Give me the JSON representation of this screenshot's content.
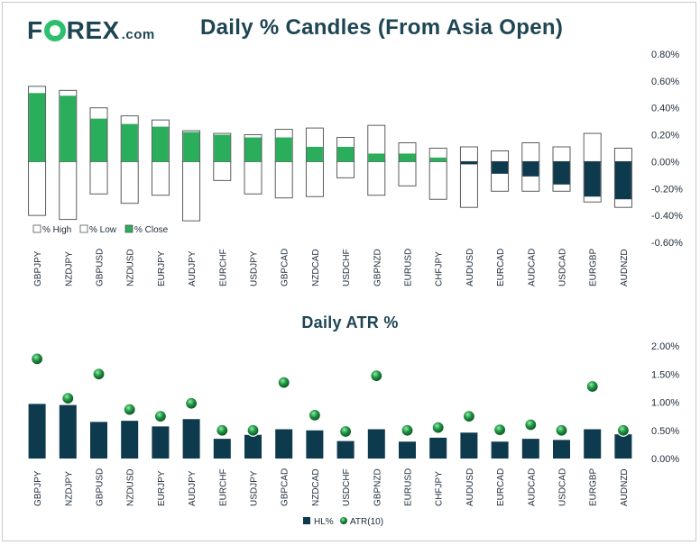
{
  "brand": {
    "name_a": "F",
    "name_b": "REX",
    "suffix": ".com"
  },
  "chart_data": [
    {
      "type": "candlestick",
      "title": "Daily % Candles (From Asia Open)",
      "categories": [
        "GBPJPY",
        "NZDJPY",
        "GBPUSD",
        "NZDUSD",
        "EURJPY",
        "AUDJPY",
        "EURCHF",
        "USDJPY",
        "GBPCAD",
        "NZDCAD",
        "USDCHF",
        "GBPNZD",
        "EURUSD",
        "CHFJPY",
        "AUDUSD",
        "EURCAD",
        "AUDCAD",
        "USDCAD",
        "EURGBP",
        "AUDNZD"
      ],
      "series": [
        {
          "name": "% High",
          "values": [
            0.56,
            0.53,
            0.4,
            0.34,
            0.31,
            0.23,
            0.21,
            0.2,
            0.24,
            0.25,
            0.18,
            0.27,
            0.14,
            0.1,
            0.11,
            0.08,
            0.14,
            0.11,
            0.21,
            0.1
          ]
        },
        {
          "name": "% Low",
          "values": [
            -0.4,
            -0.43,
            -0.24,
            -0.31,
            -0.25,
            -0.44,
            -0.14,
            -0.24,
            -0.27,
            -0.26,
            -0.12,
            -0.25,
            -0.18,
            -0.28,
            -0.34,
            -0.22,
            -0.22,
            -0.22,
            -0.3,
            -0.34
          ]
        },
        {
          "name": "% Close",
          "values": [
            0.51,
            0.49,
            0.32,
            0.28,
            0.26,
            0.22,
            0.2,
            0.18,
            0.18,
            0.11,
            0.11,
            0.06,
            0.06,
            0.03,
            -0.02,
            -0.09,
            -0.11,
            -0.17,
            -0.26,
            -0.28
          ]
        }
      ],
      "y_ticks": [
        "0.80%",
        "0.60%",
        "0.40%",
        "0.20%",
        "0.00%",
        "-0.20%",
        "-0.40%",
        "-0.60%"
      ],
      "ylim": [
        -0.6,
        0.8
      ],
      "legend": [
        "% High",
        "% Low",
        "% Close"
      ],
      "colors": {
        "up": "#2aae5c",
        "down": "#0e3a4d",
        "outline": "#4a4a4a"
      }
    },
    {
      "type": "bar+scatter",
      "title": "Daily ATR %",
      "categories": [
        "GBPJPY",
        "NZDJPY",
        "GBPUSD",
        "NZDUSD",
        "EURJPY",
        "AUDJPY",
        "EURCHF",
        "USDJPY",
        "GBPCAD",
        "NZDCAD",
        "USDCHF",
        "GBPNZD",
        "EURUSD",
        "CHFJPY",
        "AUDUSD",
        "EURCAD",
        "AUDCAD",
        "USDCAD",
        "EURGBP",
        "AUDNZD"
      ],
      "series": [
        {
          "name": "HL%",
          "type": "bar",
          "values": [
            0.97,
            0.95,
            0.65,
            0.67,
            0.57,
            0.7,
            0.35,
            0.42,
            0.52,
            0.5,
            0.31,
            0.52,
            0.3,
            0.37,
            0.46,
            0.3,
            0.35,
            0.33,
            0.52,
            0.43
          ]
        },
        {
          "name": "ATR(10)",
          "type": "scatter",
          "values": [
            1.77,
            1.07,
            1.5,
            0.87,
            0.75,
            0.98,
            0.5,
            0.5,
            1.35,
            0.77,
            0.48,
            1.47,
            0.5,
            0.55,
            0.75,
            0.51,
            0.6,
            0.5,
            1.28,
            0.5
          ]
        }
      ],
      "y_ticks": [
        "2.00%",
        "1.50%",
        "1.00%",
        "0.50%",
        "0.00%"
      ],
      "ylim": [
        0,
        2.0
      ],
      "legend": [
        "HL%",
        "ATR(10)"
      ],
      "colors": {
        "bar": "#0e3a4d",
        "marker": "#1f8a3e"
      }
    }
  ]
}
